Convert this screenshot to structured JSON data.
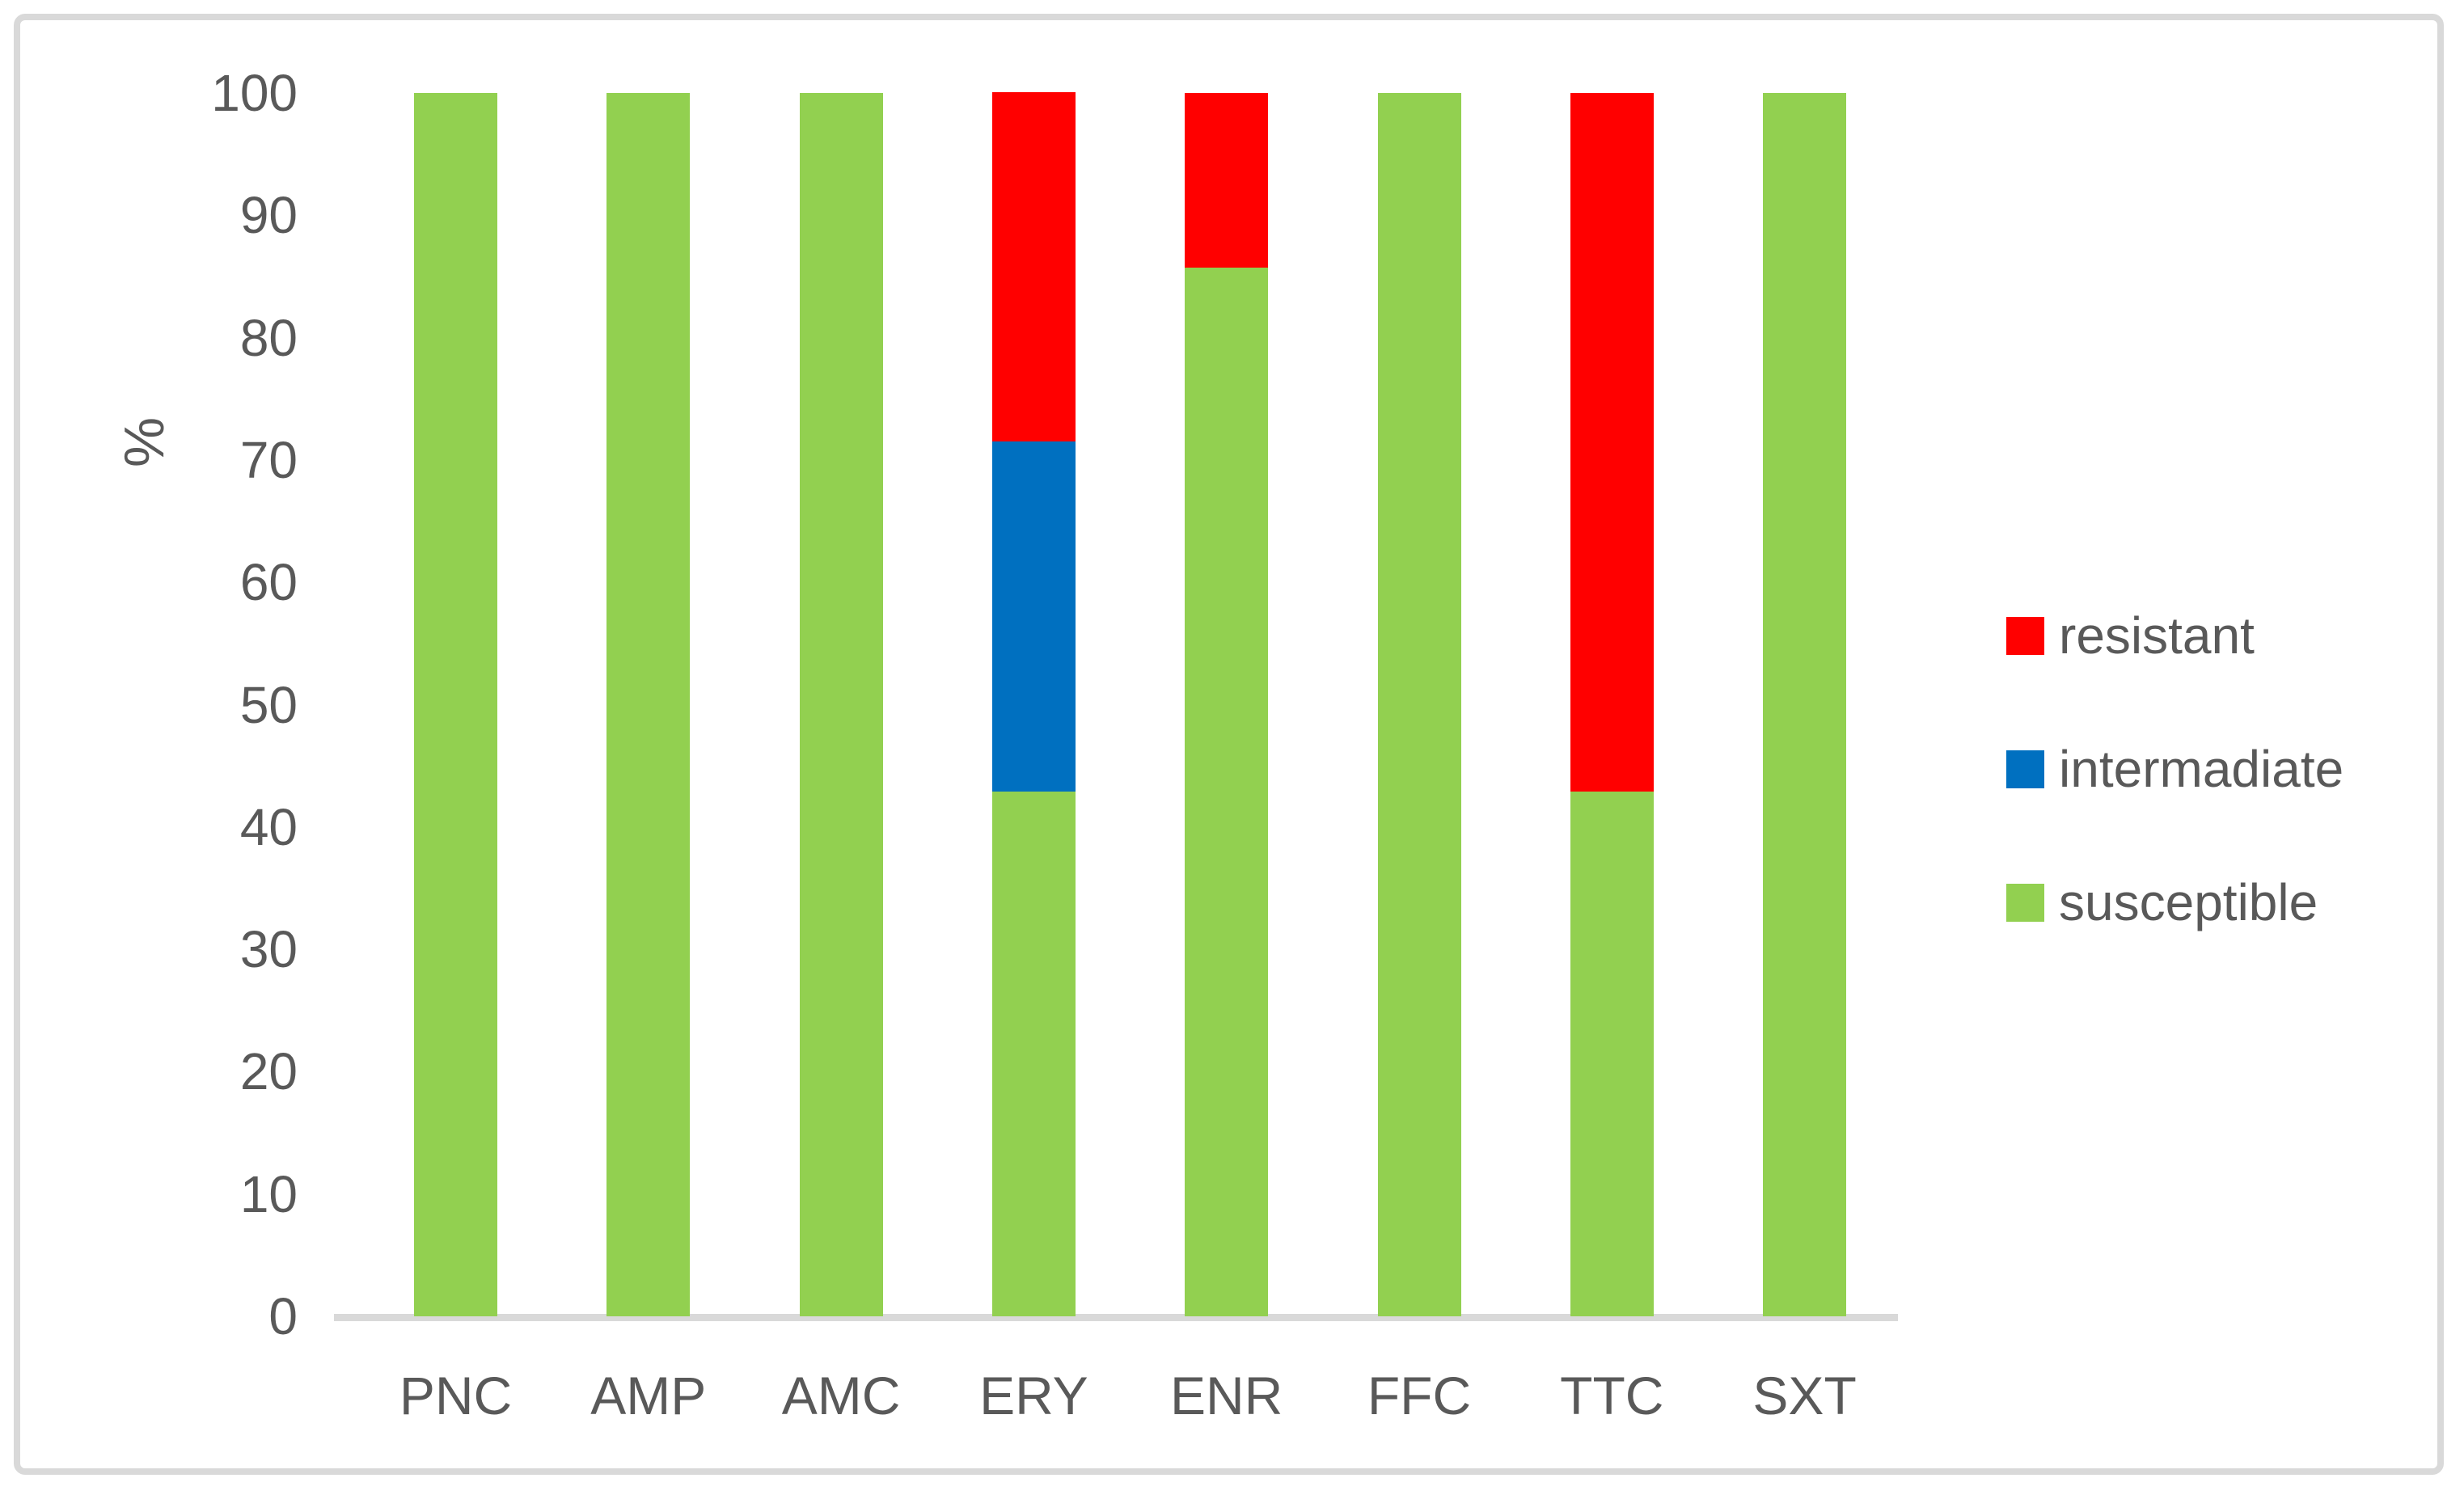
{
  "chart_data": {
    "type": "bar",
    "stacked": true,
    "orientation": "vertical",
    "title": "",
    "xlabel": "",
    "ylabel": "%",
    "ylim": [
      0,
      100
    ],
    "yticks": [
      0,
      10,
      20,
      30,
      40,
      50,
      60,
      70,
      80,
      90,
      100
    ],
    "grid": false,
    "legend_position": "right",
    "categories": [
      "PNC",
      "AMP",
      "AMC",
      "ERY",
      "ENR",
      "FFC",
      "TTC",
      "SXT"
    ],
    "series": [
      {
        "name": "resistant",
        "color": "#FF0000",
        "values": [
          0,
          0,
          0,
          28.6,
          14.3,
          0,
          57.1,
          0
        ]
      },
      {
        "name": "intermadiate",
        "color": "#0070C0",
        "values": [
          0,
          0,
          0,
          28.6,
          0,
          0,
          0,
          0
        ]
      },
      {
        "name": "susceptible",
        "color": "#92D050",
        "values": [
          100,
          100,
          100,
          42.9,
          85.7,
          100,
          42.9,
          100
        ]
      }
    ]
  },
  "colors": {
    "axis_line": "#d9d9d9",
    "frame_border": "#d9d9d9",
    "tick_text": "#595959",
    "background": "#ffffff"
  }
}
